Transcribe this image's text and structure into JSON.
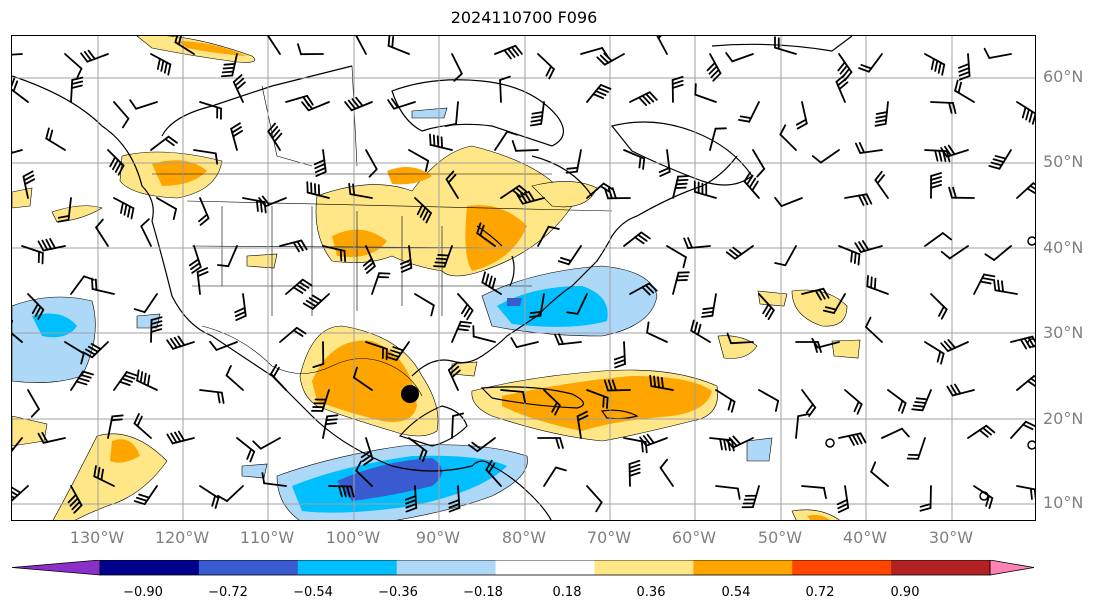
{
  "title": "2024110700 F096",
  "map_data": {
    "lon_range": [
      -140,
      -20
    ],
    "lat_range": [
      8,
      65
    ],
    "lat_labels": [
      {
        "lat": 60,
        "label": "60°N"
      },
      {
        "lat": 50,
        "label": "50°N"
      },
      {
        "lat": 40,
        "label": "40°N"
      },
      {
        "lat": 30,
        "label": "30°N"
      },
      {
        "lat": 20,
        "label": "20°N"
      },
      {
        "lat": 10,
        "label": "10°N"
      }
    ],
    "lon_labels": [
      {
        "lon": -130,
        "label": "130°W"
      },
      {
        "lon": -120,
        "label": "120°W"
      },
      {
        "lon": -110,
        "label": "110°W"
      },
      {
        "lon": -100,
        "label": "100°W"
      },
      {
        "lon": -90,
        "label": "90°W"
      },
      {
        "lon": -80,
        "label": "80°W"
      },
      {
        "lon": -70,
        "label": "70°W"
      },
      {
        "lon": -60,
        "label": "60°W"
      },
      {
        "lon": -50,
        "label": "50°W"
      },
      {
        "lon": -40,
        "label": "40°W"
      },
      {
        "lon": -30,
        "label": "30°W"
      }
    ],
    "marker": {
      "lon": -93,
      "lat": 23,
      "type": "storm-center"
    }
  },
  "colorbar": {
    "ticks": [
      "−0.90",
      "−0.72",
      "−0.54",
      "−0.36",
      "−0.18",
      "0.18",
      "0.36",
      "0.54",
      "0.72",
      "0.90"
    ],
    "colors": [
      "#8b2fc9",
      "#00008b",
      "#3a5bd0",
      "#00bfff",
      "#add8f7",
      "#ffffff",
      "#ffe787",
      "#ffa500",
      "#ff4500",
      "#b22222",
      "#ff82b4"
    ]
  }
}
